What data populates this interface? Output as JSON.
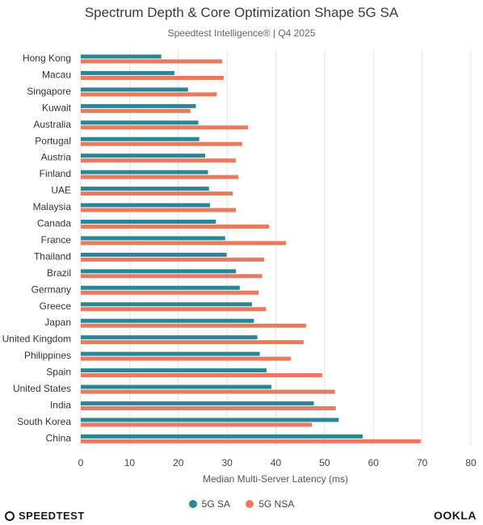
{
  "header": {
    "title": "Spectrum Depth & Core Optimization Shape 5G SA",
    "subtitle": "Speedtest Intelligence® | Q4 2025"
  },
  "brands": {
    "left": "SPEEDTEST",
    "right": "OOKLA"
  },
  "colors": {
    "sa": "#2a8697",
    "nsa": "#e97a5d",
    "grid": "#e3e3e3"
  },
  "chart_data": {
    "type": "bar",
    "orientation": "horizontal",
    "title": "Spectrum Depth & Core Optimization Shape 5G SA",
    "subtitle": "Speedtest Intelligence® | Q4 2025",
    "xlabel": "Median Multi-Server Latency (ms)",
    "ylabel": "",
    "xlim": [
      0,
      80
    ],
    "xticks": [
      0,
      10,
      20,
      30,
      40,
      50,
      60,
      70,
      80
    ],
    "grid": true,
    "legend_position": "bottom",
    "categories": [
      "Hong Kong",
      "Macau",
      "Singapore",
      "Kuwait",
      "Australia",
      "Portugal",
      "Austria",
      "Finland",
      "UAE",
      "Malaysia",
      "Canada",
      "France",
      "Thailand",
      "Brazil",
      "Germany",
      "Greece",
      "Japan",
      "United Kingdom",
      "Philippines",
      "Spain",
      "United States",
      "India",
      "South Korea",
      "China"
    ],
    "series": [
      {
        "name": "5G SA",
        "color": "#2a8697",
        "values": [
          16.5,
          19.2,
          22.0,
          23.6,
          24.1,
          24.3,
          25.5,
          26.1,
          26.3,
          26.5,
          27.7,
          29.6,
          29.9,
          31.8,
          32.6,
          35.1,
          35.5,
          36.2,
          36.7,
          38.1,
          39.1,
          47.8,
          52.9,
          57.8
        ]
      },
      {
        "name": "5G NSA",
        "color": "#e97a5d",
        "values": [
          29.0,
          29.3,
          27.9,
          22.5,
          34.3,
          33.1,
          31.8,
          32.3,
          31.2,
          31.8,
          38.6,
          42.1,
          37.6,
          37.2,
          36.5,
          38.0,
          46.2,
          45.7,
          43.1,
          49.5,
          52.1,
          52.3,
          47.4,
          69.7
        ]
      }
    ]
  }
}
